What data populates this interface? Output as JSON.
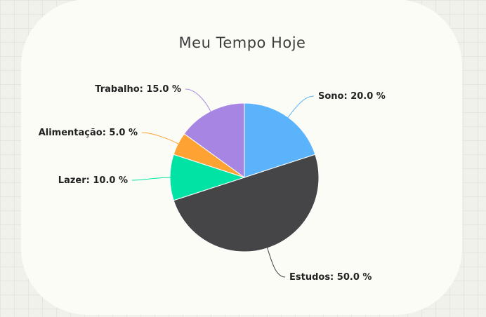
{
  "chart_data": {
    "type": "pie",
    "title": "Meu Tempo Hoje",
    "slices": [
      {
        "label": "Sono",
        "value": 20.0,
        "display": "Sono: 20.0 %",
        "color": "#5bb4fb"
      },
      {
        "label": "Estudos",
        "value": 50.0,
        "display": "Estudos: 50.0 %",
        "color": "#454447"
      },
      {
        "label": "Lazer",
        "value": 10.0,
        "display": "Lazer: 10.0 %",
        "color": "#00e3a4"
      },
      {
        "label": "Alimentação",
        "value": 5.0,
        "display": "Alimentação: 5.0 %",
        "color": "#fea234"
      },
      {
        "label": "Trabalho",
        "value": 15.0,
        "display": "Trabalho: 15.0 %",
        "color": "#a785e3"
      }
    ],
    "legend": "none"
  }
}
